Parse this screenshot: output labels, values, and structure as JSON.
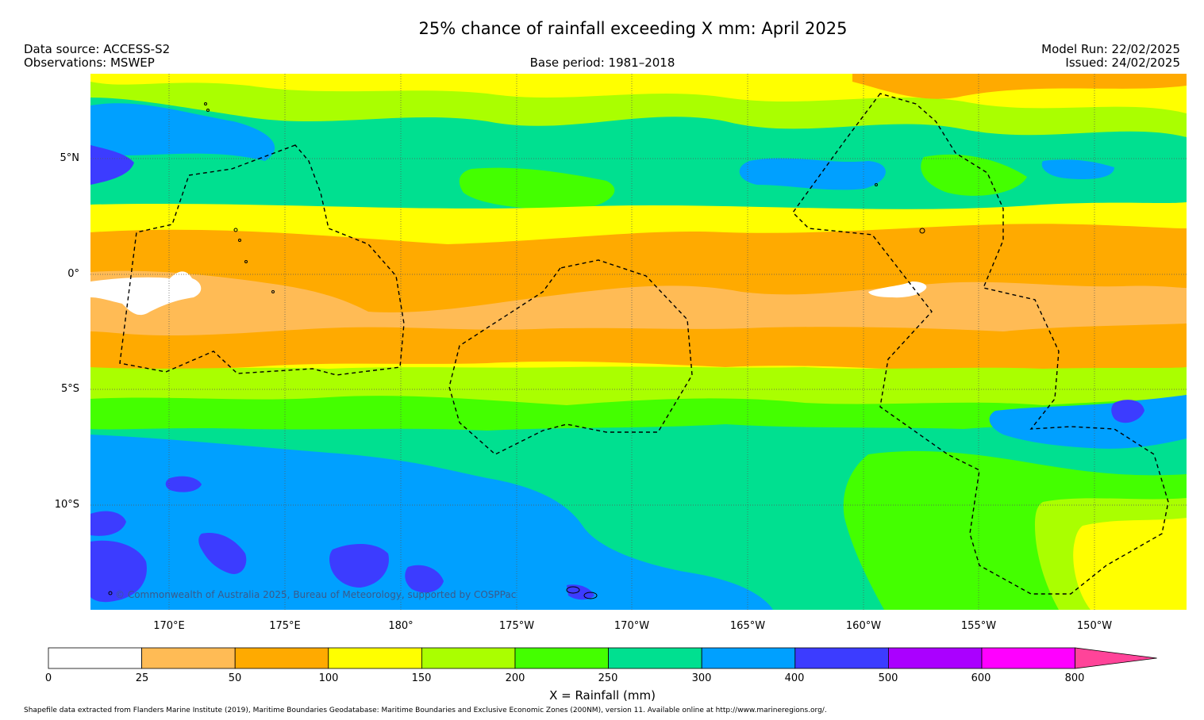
{
  "header": {
    "title": "25% chance of rainfall exceeding X mm: April 2025",
    "data_source": "Data source: ACCESS-S2",
    "observations": "Observations: MSWEP",
    "base_period": "Base period: 1981–2018",
    "model_run": "Model Run: 22/02/2025",
    "issued": "Issued: 24/02/2025"
  },
  "map": {
    "lat_labels": [
      "5°N",
      "0°",
      "5°S",
      "10°S"
    ],
    "lon_labels": [
      "170°E",
      "175°E",
      "180°",
      "175°W",
      "170°W",
      "165°W",
      "160°W",
      "155°W",
      "150°W"
    ],
    "copyright": "© Commonwealth of Australia 2025, Bureau of Meteorology, supported by COSPPac",
    "boundaries": "Maritime Boundaries and Exclusive Economic Zones (dashed)"
  },
  "legend": {
    "label": "X = Rainfall (mm)",
    "ticks": [
      "0",
      "25",
      "50",
      "100",
      "150",
      "200",
      "250",
      "300",
      "400",
      "500",
      "600",
      "800"
    ],
    "colors": [
      "#ffffff",
      "#ffbb55",
      "#ffaa00",
      "#ffff00",
      "#aaff00",
      "#44ff00",
      "#00e090",
      "#00a0ff",
      "#3c3cff",
      "#aa00ff",
      "#ff00ff"
    ],
    "overflow_color": "#ff4499"
  },
  "footer": {
    "shapefile": "Shapefile data extracted from Flanders Marine Institute (2019), Maritime Boundaries Geodatabase: Maritime Boundaries and Exclusive Economic Zones (200NM), version 11. Available online at http://www.marineregions.org/."
  }
}
